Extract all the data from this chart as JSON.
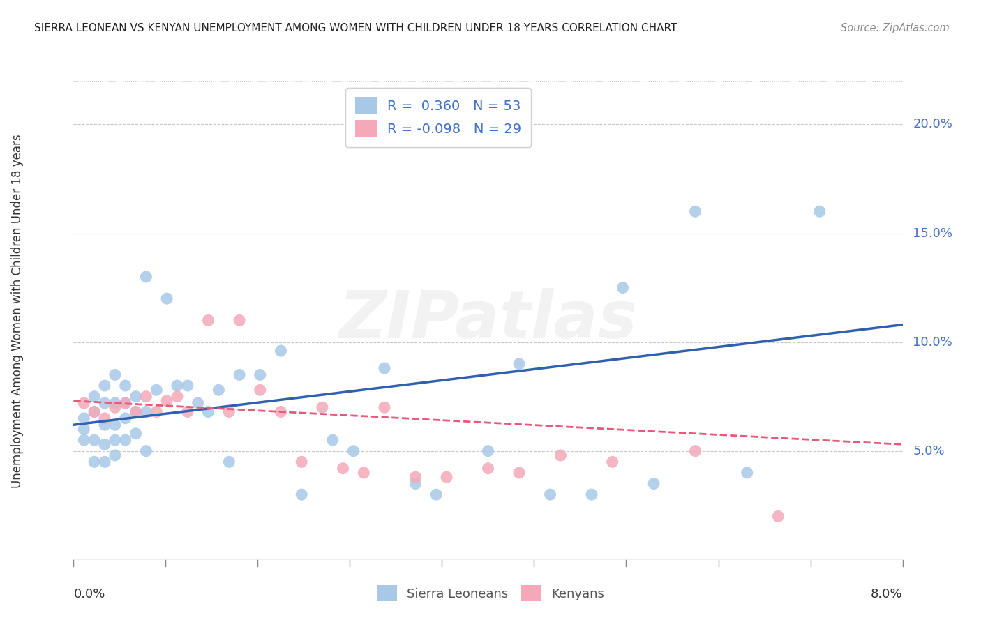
{
  "title": "SIERRA LEONEAN VS KENYAN UNEMPLOYMENT AMONG WOMEN WITH CHILDREN UNDER 18 YEARS CORRELATION CHART",
  "source": "Source: ZipAtlas.com",
  "ylabel": "Unemployment Among Women with Children Under 18 years",
  "x_min": 0.0,
  "x_max": 0.08,
  "y_min": 0.0,
  "y_max": 0.22,
  "y_ticks": [
    0.05,
    0.1,
    0.15,
    0.2
  ],
  "y_tick_labels": [
    "5.0%",
    "10.0%",
    "15.0%",
    "20.0%"
  ],
  "sierra_R": 0.36,
  "sierra_N": 53,
  "kenya_R": -0.098,
  "kenya_N": 29,
  "sierra_color": "#a8c8e8",
  "kenya_color": "#f4a8b8",
  "sierra_line_color": "#3060b0",
  "kenya_line_color": "#e85878",
  "background_color": "#ffffff",
  "grid_color": "#c8c8c8",
  "sierra_x": [
    0.001,
    0.001,
    0.001,
    0.002,
    0.002,
    0.002,
    0.002,
    0.003,
    0.003,
    0.003,
    0.003,
    0.003,
    0.004,
    0.004,
    0.004,
    0.004,
    0.004,
    0.005,
    0.005,
    0.005,
    0.005,
    0.006,
    0.006,
    0.006,
    0.007,
    0.007,
    0.007,
    0.008,
    0.009,
    0.01,
    0.011,
    0.012,
    0.013,
    0.014,
    0.015,
    0.016,
    0.018,
    0.02,
    0.022,
    0.025,
    0.027,
    0.03,
    0.033,
    0.035,
    0.04,
    0.043,
    0.046,
    0.05,
    0.053,
    0.056,
    0.06,
    0.065,
    0.072
  ],
  "sierra_y": [
    0.06,
    0.065,
    0.055,
    0.075,
    0.068,
    0.055,
    0.045,
    0.08,
    0.072,
    0.062,
    0.053,
    0.045,
    0.085,
    0.072,
    0.062,
    0.055,
    0.048,
    0.08,
    0.072,
    0.065,
    0.055,
    0.075,
    0.068,
    0.058,
    0.13,
    0.068,
    0.05,
    0.078,
    0.12,
    0.08,
    0.08,
    0.072,
    0.068,
    0.078,
    0.045,
    0.085,
    0.085,
    0.096,
    0.03,
    0.055,
    0.05,
    0.088,
    0.035,
    0.03,
    0.05,
    0.09,
    0.03,
    0.03,
    0.125,
    0.035,
    0.16,
    0.04,
    0.16
  ],
  "kenya_x": [
    0.001,
    0.002,
    0.003,
    0.004,
    0.005,
    0.006,
    0.007,
    0.008,
    0.009,
    0.01,
    0.011,
    0.013,
    0.015,
    0.016,
    0.018,
    0.02,
    0.022,
    0.024,
    0.026,
    0.028,
    0.03,
    0.033,
    0.036,
    0.04,
    0.043,
    0.047,
    0.052,
    0.06,
    0.068
  ],
  "kenya_y": [
    0.072,
    0.068,
    0.065,
    0.07,
    0.072,
    0.068,
    0.075,
    0.068,
    0.073,
    0.075,
    0.068,
    0.11,
    0.068,
    0.11,
    0.078,
    0.068,
    0.045,
    0.07,
    0.042,
    0.04,
    0.07,
    0.038,
    0.038,
    0.042,
    0.04,
    0.048,
    0.045,
    0.05,
    0.02
  ],
  "sierra_line_x0": 0.0,
  "sierra_line_x1": 0.08,
  "sierra_line_y0": 0.062,
  "sierra_line_y1": 0.108,
  "kenya_line_x0": 0.0,
  "kenya_line_x1": 0.08,
  "kenya_line_y0": 0.073,
  "kenya_line_y1": 0.053
}
